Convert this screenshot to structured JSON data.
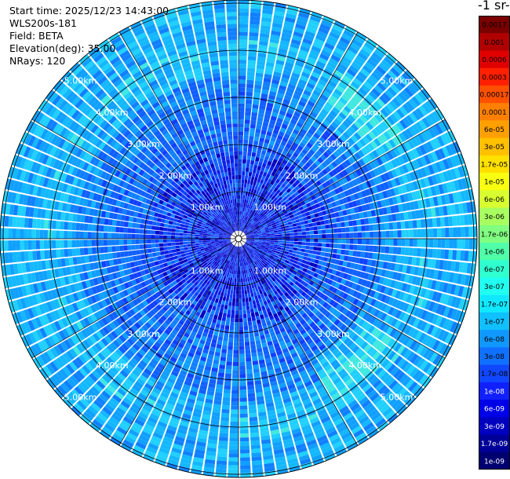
{
  "header": {
    "start_time": "Start time: 2025/12/23 14:43:00",
    "device": "WLS200s-181",
    "field": "Field: BETA",
    "elevation": "Elevation(deg): 35.00",
    "nrays": "NRays: 120"
  },
  "colorbar": {
    "unit_label": "-1 sr-",
    "labels": [
      "0.0017",
      "0.001",
      "0.0006",
      "0.0003",
      "0.00017",
      "0.0001",
      "6e-05",
      "3e-05",
      "1.7e-05",
      "1e-05",
      "6e-06",
      "3e-06",
      "1.7e-06",
      "1e-06",
      "6e-07",
      "3e-07",
      "1.7e-07",
      "1e-07",
      "6e-08",
      "3e-08",
      "1.7e-08",
      "1e-08",
      "6e-09",
      "3e-09",
      "1.7e-09",
      "1e-09"
    ],
    "colors": [
      "#7a0000",
      "#b00000",
      "#e00000",
      "#ff2000",
      "#ff5000",
      "#ff8000",
      "#ffa000",
      "#ffc000",
      "#ffe000",
      "#f8ff10",
      "#d8ff30",
      "#a8ff60",
      "#80ff80",
      "#50ffa8",
      "#30ffd0",
      "#20fff0",
      "#10e8ff",
      "#10c0ff",
      "#1098ff",
      "#1070ff",
      "#1048ff",
      "#1020ff",
      "#0000e8",
      "#0000c0",
      "#000098",
      "#000070"
    ]
  },
  "range_rings": {
    "labels": [
      "1.00km",
      "2.00km",
      "3.00km",
      "4.00km",
      "5.00km"
    ]
  }
}
